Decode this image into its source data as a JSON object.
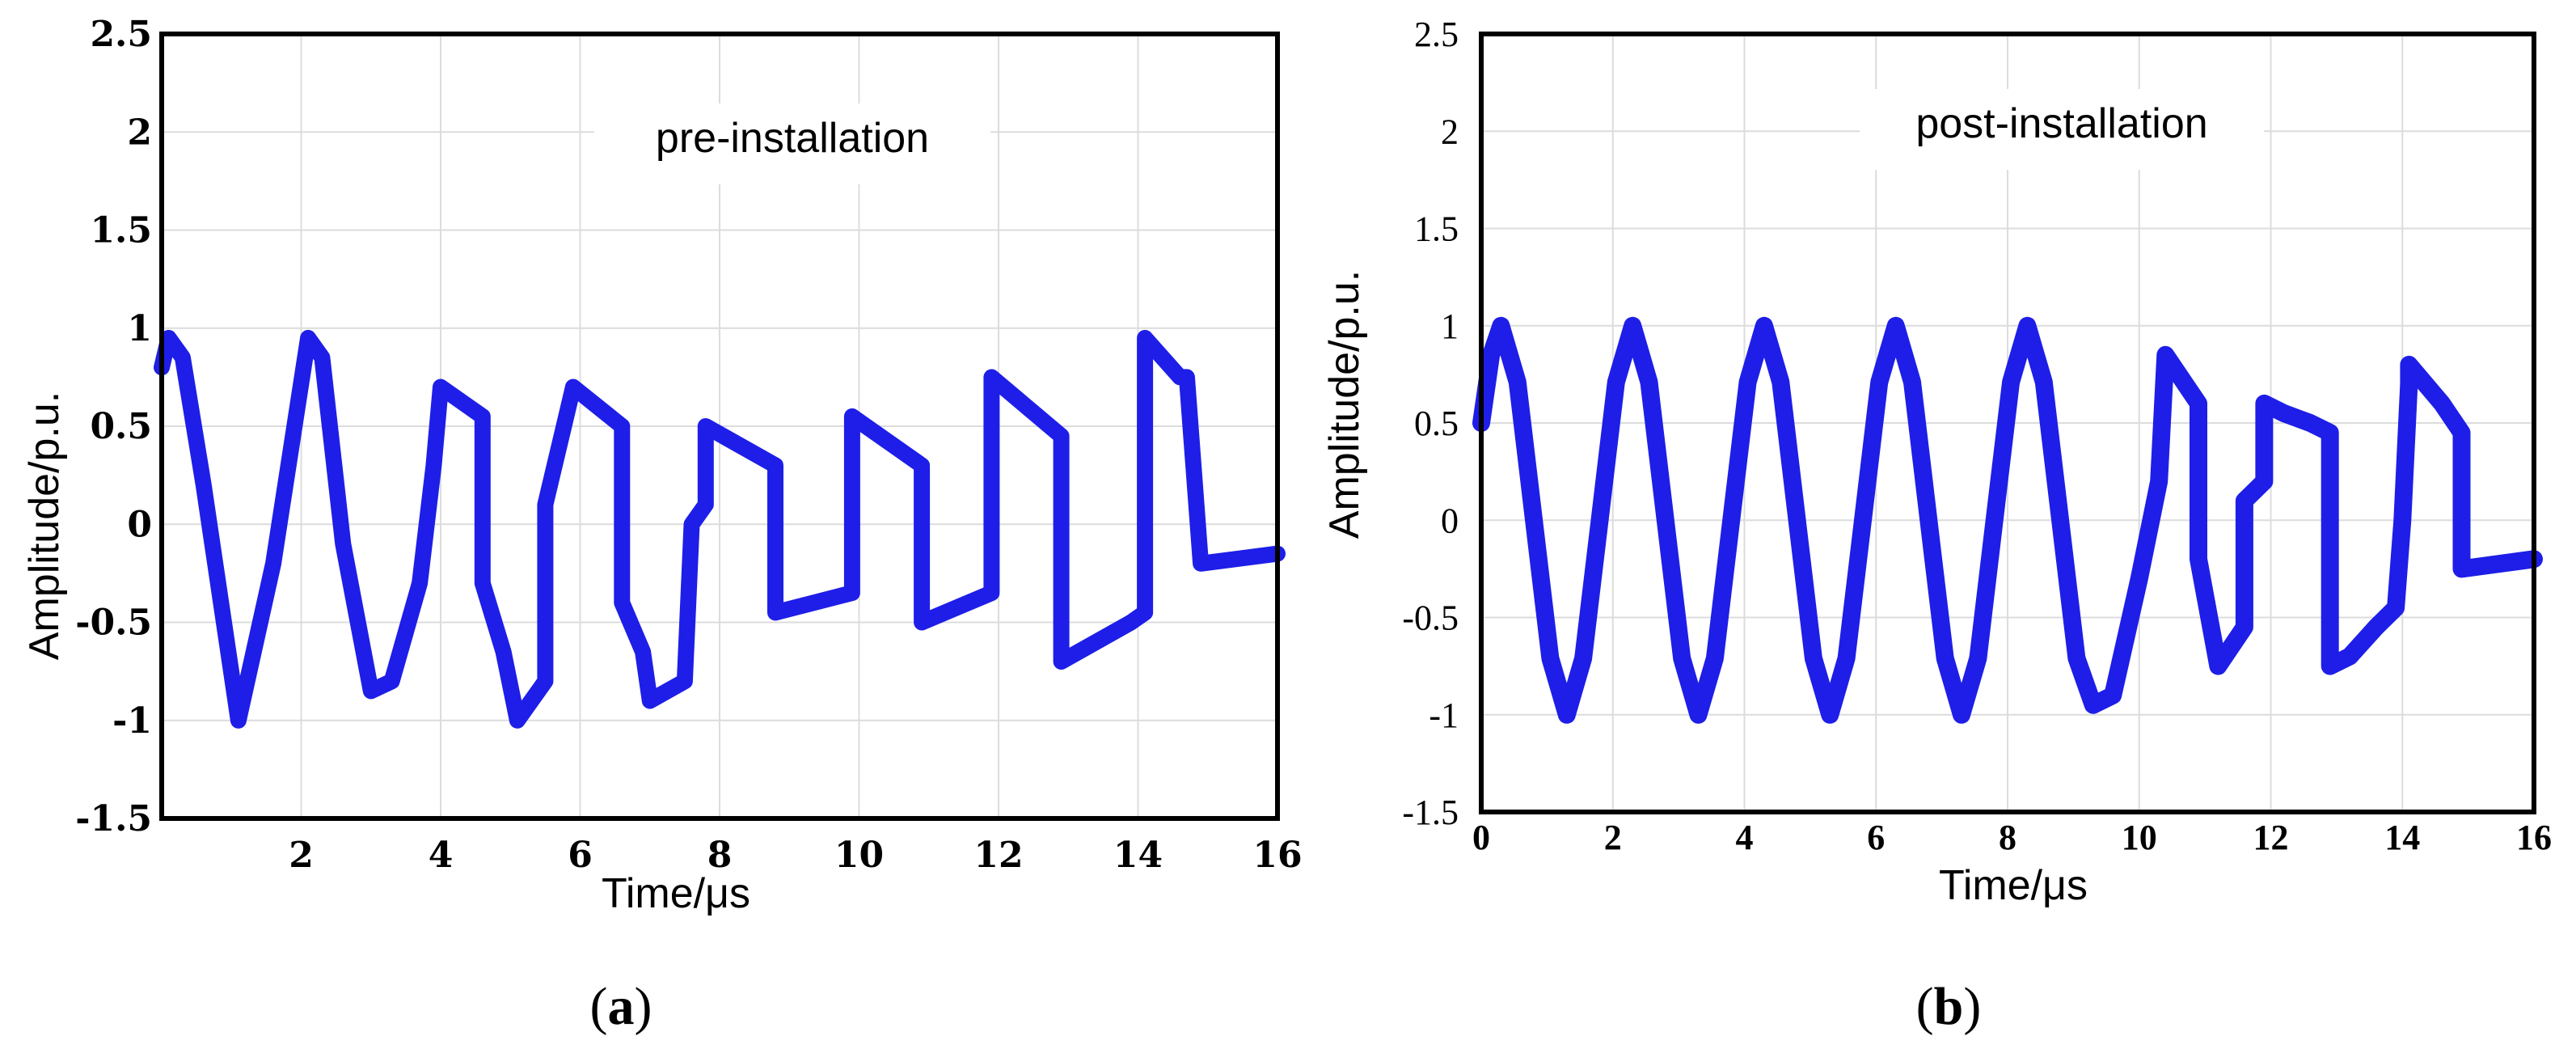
{
  "colors": {
    "signal": "#1e1ee8",
    "grid": "#dcdcdc",
    "frame": "#000000"
  },
  "chart_data": [
    {
      "type": "line",
      "title": "pre-installation",
      "xlabel": "Time/μs",
      "ylabel": "Amplitude/p.u.",
      "xlim": [
        0,
        16
      ],
      "ylim": [
        -1.5,
        2.5
      ],
      "xticks": [
        "2",
        "4",
        "6",
        "8",
        "10",
        "12",
        "14",
        "16"
      ],
      "yticks": [
        "2.5",
        "2",
        "1.5",
        "1",
        "0.5",
        "0",
        "-0.5",
        "-1",
        "-1.5"
      ],
      "grid": true,
      "caption": "a",
      "series": [
        {
          "x": [
            0,
            0.1,
            0.3,
            0.6,
            1.1,
            1.6,
            2.1,
            2.3,
            2.6,
            3.0,
            3.3,
            3.7,
            3.9,
            4.0,
            4.6,
            4.6,
            4.9,
            5.1,
            5.5,
            5.5,
            5.8,
            5.9,
            6.6,
            6.6,
            6.9,
            7.0,
            7.5,
            7.6,
            7.8,
            7.8,
            8.8,
            8.8,
            9.9,
            9.9,
            10.9,
            10.9,
            11.9,
            11.9,
            12.9,
            12.9,
            13.9,
            14.1,
            14.1,
            14.6,
            14.7,
            14.9,
            16
          ],
          "y": [
            0.8,
            0.95,
            0.85,
            0.2,
            -1.0,
            -0.2,
            0.95,
            0.85,
            -0.1,
            -0.85,
            -0.8,
            -0.3,
            0.3,
            0.7,
            0.55,
            -0.3,
            -0.65,
            -1.0,
            -0.8,
            0.1,
            0.55,
            0.7,
            0.5,
            -0.4,
            -0.65,
            -0.9,
            -0.8,
            0.0,
            0.1,
            0.5,
            0.3,
            -0.45,
            -0.35,
            0.55,
            0.3,
            -0.5,
            -0.35,
            0.75,
            0.45,
            -0.7,
            -0.5,
            -0.45,
            0.95,
            0.75,
            0.75,
            -0.2,
            -0.15
          ]
        }
      ]
    },
    {
      "type": "line",
      "title": "post-installation",
      "xlabel": "Time/μs",
      "ylabel": "Amplitude/p.u.",
      "xlim": [
        0,
        16
      ],
      "ylim": [
        -1.5,
        2.5
      ],
      "xticks": [
        "0",
        "2",
        "4",
        "6",
        "8",
        "10",
        "12",
        "14",
        "16"
      ],
      "yticks": [
        "2.5",
        "2",
        "1.5",
        "1",
        "0.5",
        "0",
        "-0.5",
        "-1",
        "-1.5"
      ],
      "grid": true,
      "caption": "b",
      "series": [
        {
          "x": [
            0,
            0.15,
            0.3,
            0.55,
            0.8,
            1.05,
            1.3,
            1.55,
            1.8,
            2.05,
            2.3,
            2.55,
            2.8,
            3.05,
            3.3,
            3.55,
            3.8,
            4.05,
            4.3,
            4.55,
            4.8,
            5.05,
            5.3,
            5.55,
            5.8,
            6.05,
            6.3,
            6.55,
            6.8,
            7.05,
            7.3,
            7.55,
            7.8,
            8.05,
            8.3,
            8.55,
            8.8,
            9.05,
            9.3,
            9.6,
            10.0,
            10.3,
            10.4,
            10.9,
            10.9,
            11.2,
            11.6,
            11.6,
            11.9,
            11.9,
            12.2,
            12.6,
            12.9,
            12.9,
            13.2,
            13.6,
            13.9,
            14.0,
            14.1,
            14.1,
            14.6,
            14.9,
            14.9,
            16
          ],
          "y": [
            0.5,
            0.85,
            1.0,
            0.71,
            0.0,
            -0.71,
            -1.0,
            -0.71,
            0.0,
            0.71,
            1.0,
            0.71,
            0.0,
            -0.71,
            -1.0,
            -0.71,
            0.0,
            0.71,
            1.0,
            0.71,
            0.0,
            -0.71,
            -1.0,
            -0.71,
            0.0,
            0.71,
            1.0,
            0.71,
            0.0,
            -0.71,
            -1.0,
            -0.71,
            0.0,
            0.71,
            1.0,
            0.71,
            0.0,
            -0.71,
            -0.95,
            -0.9,
            -0.3,
            0.2,
            0.85,
            0.6,
            -0.2,
            -0.75,
            -0.55,
            0.1,
            0.2,
            0.6,
            0.55,
            0.5,
            0.45,
            -0.75,
            -0.7,
            -0.55,
            -0.45,
            0.0,
            0.7,
            0.8,
            0.6,
            0.45,
            -0.25,
            -0.2
          ]
        }
      ]
    }
  ]
}
